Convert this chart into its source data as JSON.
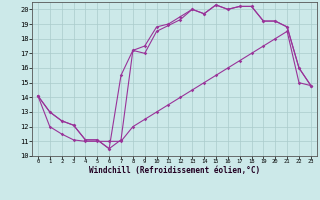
{
  "background_color": "#cce9e9",
  "grid_color": "#aacccc",
  "line_color": "#993399",
  "xlabel": "Windchill (Refroidissement éolien,°C)",
  "xlim_min": -0.5,
  "xlim_max": 23.5,
  "ylim_min": 10,
  "ylim_max": 20.5,
  "xticks": [
    0,
    1,
    2,
    3,
    4,
    5,
    6,
    7,
    8,
    9,
    10,
    11,
    12,
    13,
    14,
    15,
    16,
    17,
    18,
    19,
    20,
    21,
    22,
    23
  ],
  "yticks": [
    10,
    11,
    12,
    13,
    14,
    15,
    16,
    17,
    18,
    19,
    20
  ],
  "line1_x": [
    0,
    1,
    2,
    3,
    4,
    5,
    6,
    7,
    8,
    9,
    10,
    11,
    12,
    13,
    14,
    15,
    16,
    17,
    18,
    19,
    20,
    21,
    22,
    23
  ],
  "line1_y": [
    14.1,
    13.0,
    12.4,
    12.1,
    11.1,
    11.1,
    10.5,
    11.1,
    17.2,
    17.0,
    18.5,
    18.9,
    19.3,
    20.0,
    19.7,
    20.3,
    20.0,
    20.2,
    20.2,
    19.2,
    19.2,
    18.8,
    16.0,
    14.8
  ],
  "line2_x": [
    0,
    1,
    2,
    3,
    4,
    5,
    6,
    7,
    8,
    9,
    10,
    11,
    12,
    13,
    14,
    15,
    16,
    17,
    18,
    19,
    20,
    21,
    22,
    23
  ],
  "line2_y": [
    14.1,
    13.0,
    12.4,
    12.1,
    11.1,
    11.1,
    10.5,
    15.5,
    17.2,
    17.5,
    18.8,
    19.0,
    19.5,
    20.0,
    19.7,
    20.3,
    20.0,
    20.2,
    20.2,
    19.2,
    19.2,
    18.8,
    16.0,
    14.8
  ],
  "line3_x": [
    0,
    1,
    2,
    3,
    4,
    5,
    6,
    7,
    8,
    9,
    10,
    11,
    12,
    13,
    14,
    15,
    16,
    17,
    18,
    19,
    20,
    21,
    22,
    23
  ],
  "line3_y": [
    14.1,
    12.0,
    11.5,
    11.1,
    11.0,
    11.0,
    11.0,
    11.0,
    12.0,
    12.5,
    13.0,
    13.5,
    14.0,
    14.5,
    15.0,
    15.5,
    16.0,
    16.5,
    17.0,
    17.5,
    18.0,
    18.5,
    15.0,
    14.8
  ]
}
